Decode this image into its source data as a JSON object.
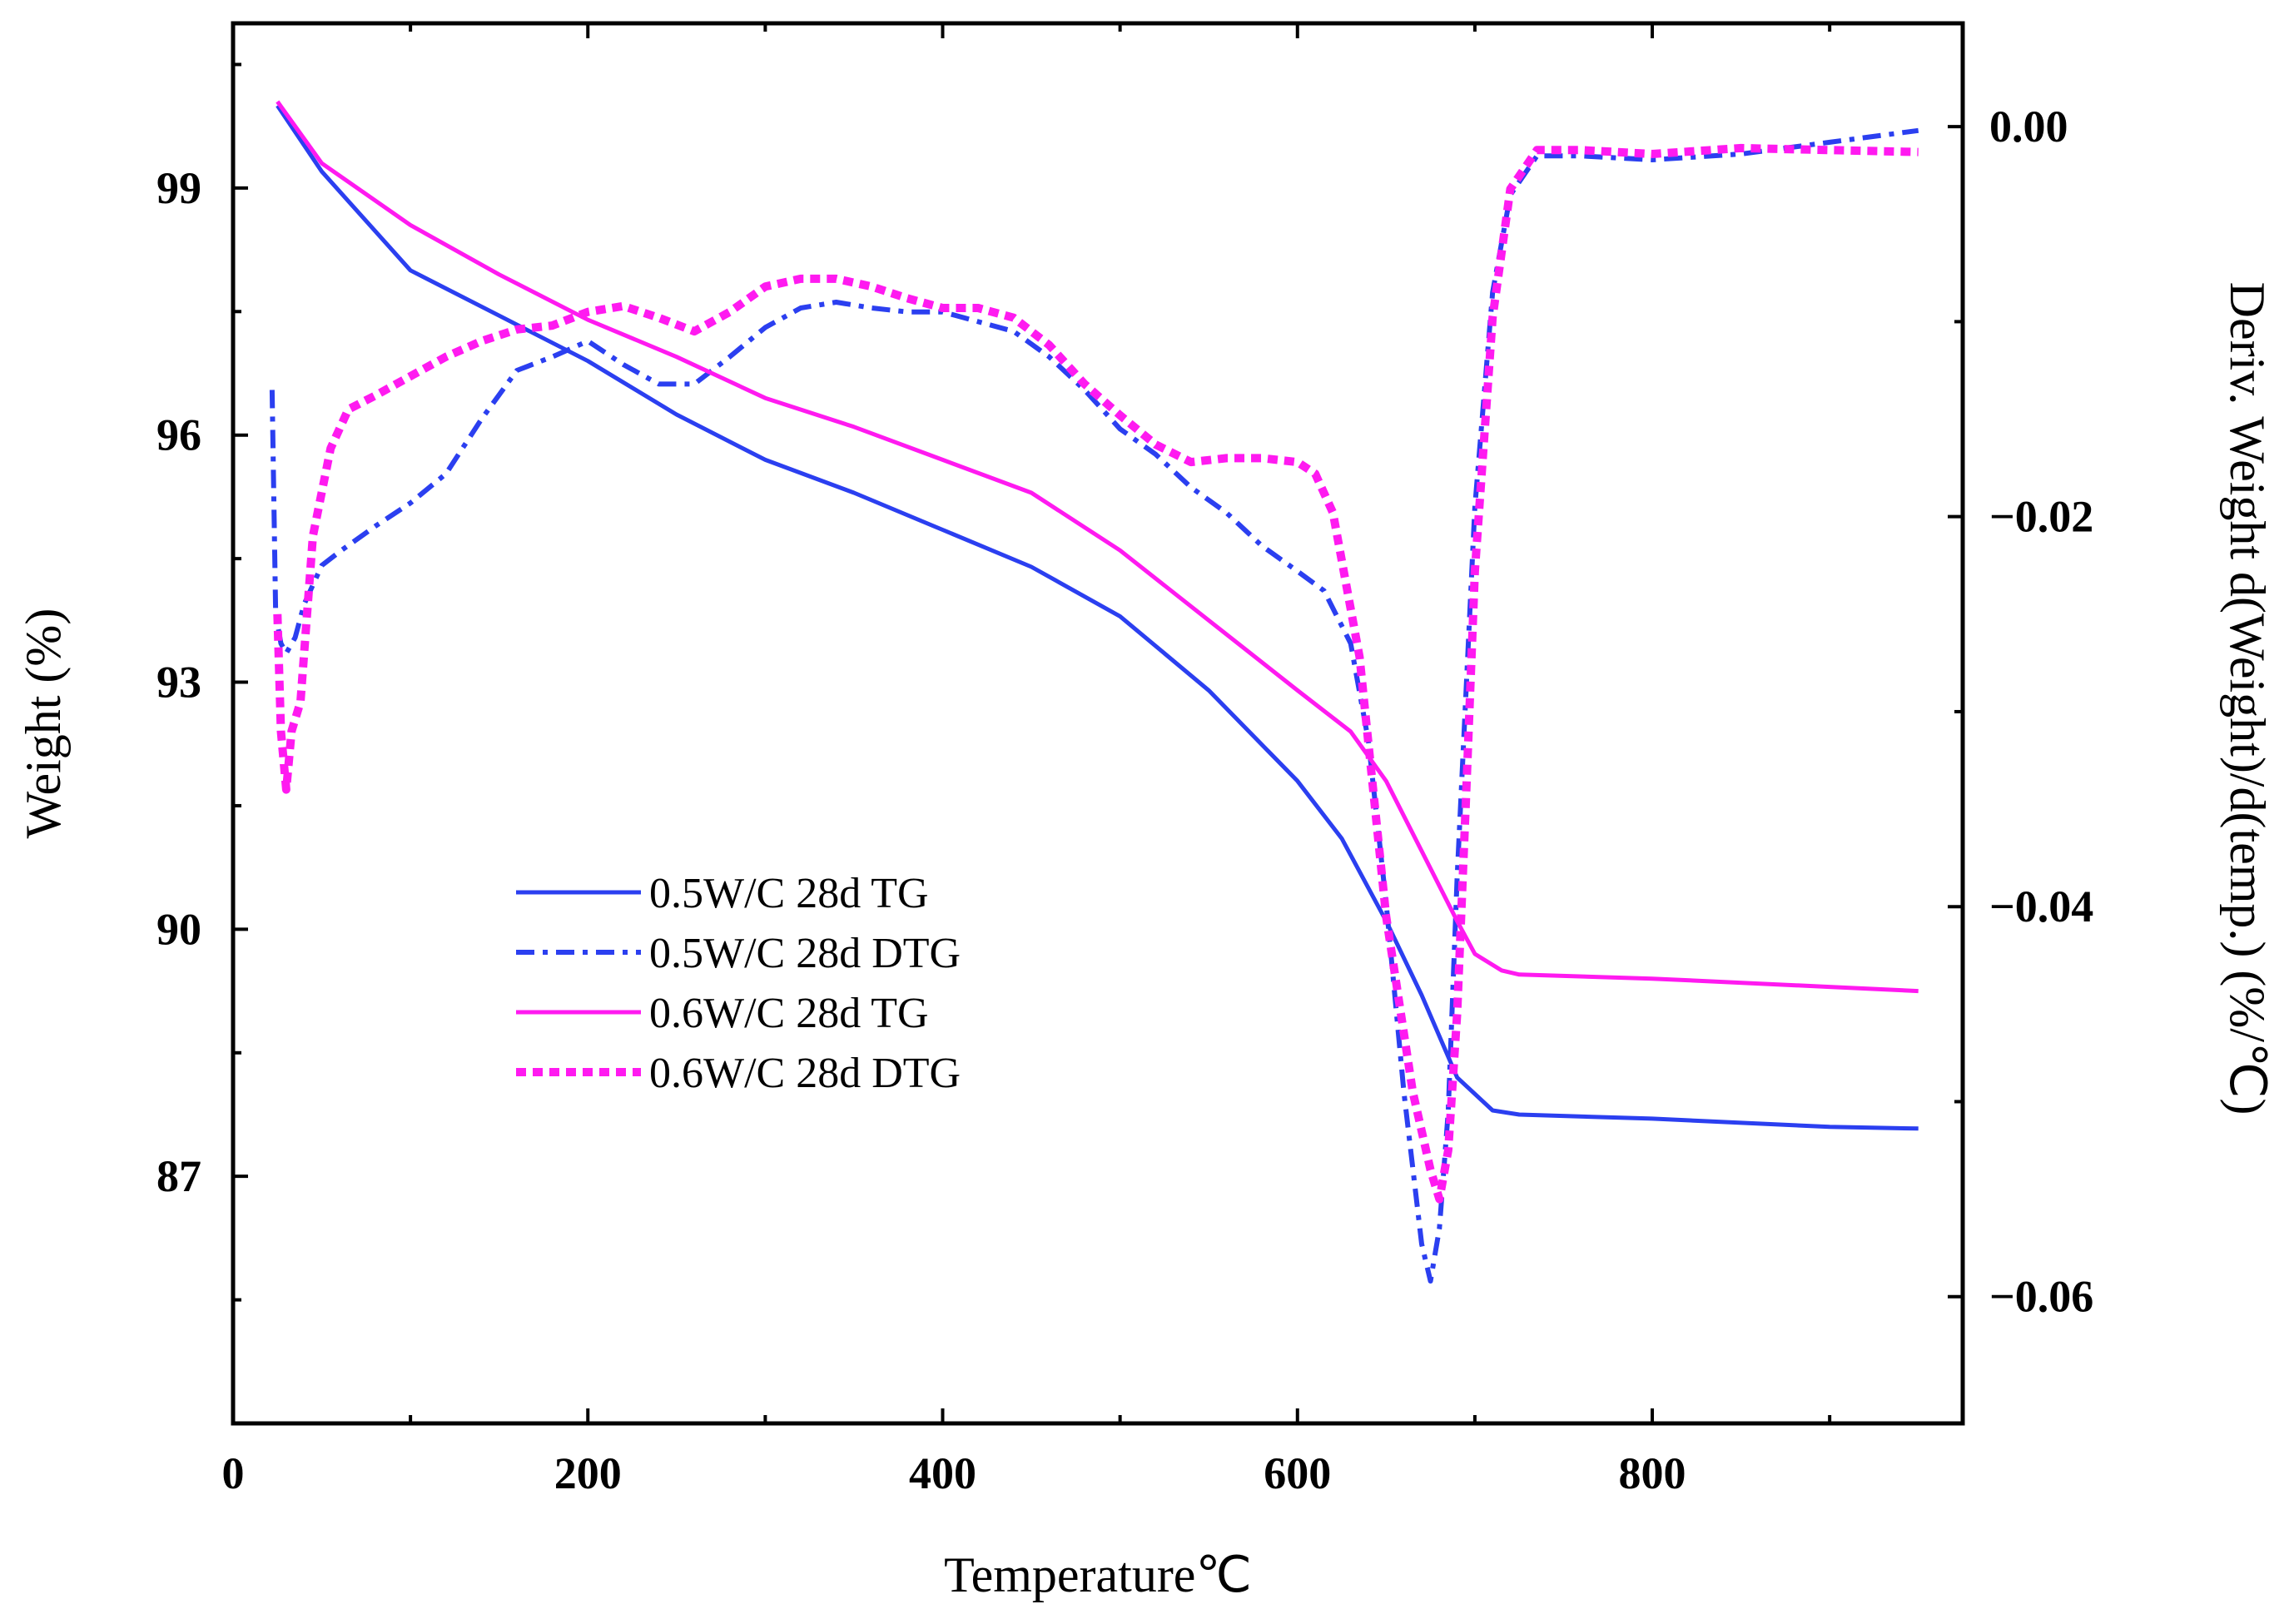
{
  "chart_data": {
    "type": "line",
    "title": "",
    "xlabel": "Temperature℃",
    "ylabel_left": "Weight (%)",
    "ylabel_right": "Deriv. Weight d(Weight)/d(temp.) (%/℃)",
    "xlim": [
      0,
      975
    ],
    "ylim_left": [
      84,
      101
    ],
    "ylim_right": [
      -0.0665,
      0.0053
    ],
    "x_ticks": [
      0,
      200,
      400,
      600,
      800
    ],
    "x_tick_labels": [
      "0",
      "200",
      "400",
      "600",
      "800"
    ],
    "y_left_ticks": [
      87,
      90,
      93,
      96,
      99
    ],
    "y_left_tick_labels": [
      "87",
      "90",
      "93",
      "96",
      "99"
    ],
    "y_right_ticks": [
      -0.06,
      -0.04,
      -0.02,
      0.0
    ],
    "y_right_tick_labels": [
      "−0.06",
      "−0.04",
      "−0.02",
      "0.00"
    ],
    "legend_position": "center-left",
    "series": [
      {
        "name": "0.5W/C 28d TG",
        "axis": "left",
        "style": "solid",
        "color": "#2B3FF0",
        "x": [
          25,
          50,
          100,
          150,
          200,
          250,
          300,
          350,
          400,
          450,
          500,
          550,
          600,
          625,
          650,
          670,
          690,
          710,
          725,
          800,
          900,
          950
        ],
        "y": [
          100.0,
          99.2,
          98.0,
          97.45,
          96.9,
          96.25,
          95.7,
          95.3,
          94.85,
          94.4,
          93.8,
          92.9,
          91.8,
          91.1,
          90.1,
          89.2,
          88.2,
          87.8,
          87.75,
          87.7,
          87.6,
          87.58
        ]
      },
      {
        "name": "0.5W/C 28d DTG",
        "axis": "right",
        "style": "dashdot",
        "color": "#2B3FF0",
        "x": [
          22,
          24,
          27,
          30,
          35,
          40,
          50,
          60,
          80,
          100,
          120,
          140,
          160,
          180,
          200,
          220,
          240,
          260,
          280,
          300,
          320,
          340,
          360,
          380,
          400,
          420,
          440,
          460,
          480,
          500,
          520,
          540,
          560,
          580,
          600,
          615,
          630,
          640,
          650,
          660,
          670,
          675,
          680,
          685,
          690,
          700,
          710,
          720,
          735,
          760,
          800,
          850,
          900,
          950
        ],
        "y": [
          -0.0135,
          -0.025,
          -0.0265,
          -0.027,
          -0.0262,
          -0.0245,
          -0.0225,
          -0.0218,
          -0.0205,
          -0.0193,
          -0.0178,
          -0.015,
          -0.0125,
          -0.0118,
          -0.011,
          -0.0122,
          -0.0132,
          -0.0132,
          -0.0118,
          -0.0103,
          -0.0093,
          -0.009,
          -0.0093,
          -0.0095,
          -0.0095,
          -0.01,
          -0.0105,
          -0.0118,
          -0.0135,
          -0.0155,
          -0.0168,
          -0.0185,
          -0.0198,
          -0.0215,
          -0.0228,
          -0.0238,
          -0.0265,
          -0.0315,
          -0.0398,
          -0.0495,
          -0.0573,
          -0.0592,
          -0.0565,
          -0.0505,
          -0.0385,
          -0.0195,
          -0.0085,
          -0.0035,
          -0.0015,
          -0.0015,
          -0.0017,
          -0.0014,
          -0.0008,
          -0.0002
        ]
      },
      {
        "name": "0.6W/C 28d TG",
        "axis": "left",
        "style": "solid",
        "color": "#FF1AF0",
        "x": [
          25,
          50,
          100,
          150,
          200,
          250,
          300,
          350,
          400,
          450,
          500,
          550,
          600,
          630,
          650,
          670,
          690,
          700,
          715,
          725,
          800,
          900,
          950
        ],
        "y": [
          100.05,
          99.3,
          98.55,
          97.95,
          97.4,
          96.95,
          96.45,
          96.1,
          95.7,
          95.3,
          94.6,
          93.75,
          92.9,
          92.4,
          91.8,
          90.95,
          90.1,
          89.7,
          89.5,
          89.45,
          89.4,
          89.3,
          89.25
        ]
      },
      {
        "name": "0.6W/C 28d DTG",
        "axis": "right",
        "style": "dotted",
        "color": "#FF1AF0",
        "x": [
          25,
          27,
          30,
          33,
          38,
          45,
          55,
          65,
          80,
          100,
          120,
          140,
          160,
          180,
          200,
          220,
          240,
          260,
          280,
          300,
          320,
          340,
          360,
          380,
          400,
          420,
          440,
          460,
          480,
          500,
          520,
          540,
          560,
          580,
          600,
          610,
          620,
          635,
          650,
          665,
          675,
          680,
          685,
          690,
          695,
          700,
          710,
          720,
          735,
          760,
          800,
          850,
          900,
          950
        ],
        "y": [
          -0.025,
          -0.031,
          -0.034,
          -0.031,
          -0.0295,
          -0.021,
          -0.0165,
          -0.0145,
          -0.0138,
          -0.0128,
          -0.0118,
          -0.011,
          -0.0104,
          -0.0102,
          -0.0095,
          -0.0092,
          -0.0098,
          -0.0105,
          -0.0095,
          -0.0082,
          -0.0078,
          -0.0078,
          -0.0082,
          -0.0088,
          -0.0093,
          -0.0093,
          -0.0098,
          -0.0112,
          -0.0132,
          -0.0148,
          -0.0163,
          -0.0172,
          -0.017,
          -0.017,
          -0.0172,
          -0.0178,
          -0.0198,
          -0.0272,
          -0.0405,
          -0.0495,
          -0.0535,
          -0.055,
          -0.0525,
          -0.0455,
          -0.0345,
          -0.0228,
          -0.0098,
          -0.0032,
          -0.0012,
          -0.0012,
          -0.0014,
          -0.0011,
          -0.0012,
          -0.0013
        ]
      }
    ]
  }
}
